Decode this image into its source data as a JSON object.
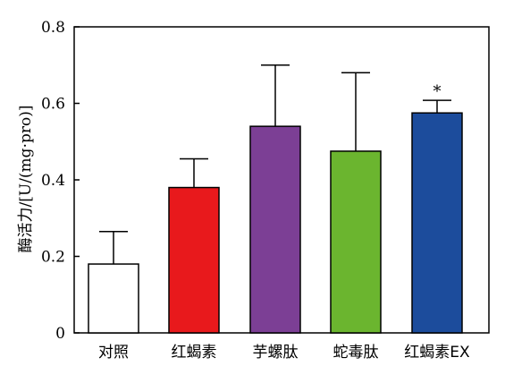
{
  "chart_data": {
    "type": "bar",
    "title": "",
    "xlabel": "",
    "ylabel": "酶活力/[U/(mg·pro)]",
    "ylim": [
      0,
      0.8
    ],
    "yticks": [
      "0",
      "0.2",
      "0.4",
      "0.6",
      "0.8"
    ],
    "grid": false,
    "categories": [
      "对照",
      "红蝎素",
      "芋螺肽",
      "蛇毒肽",
      "红蝎素EX"
    ],
    "values": [
      0.18,
      0.38,
      0.54,
      0.475,
      0.575
    ],
    "error_upper": [
      0.265,
      0.455,
      0.7,
      0.68,
      0.608
    ],
    "colors": [
      "#ffffff",
      "#e8191c",
      "#7c3f95",
      "#6bb52f",
      "#1c4c9c"
    ],
    "annotations": [
      {
        "category": "红蝎素EX",
        "text": "*"
      }
    ]
  }
}
